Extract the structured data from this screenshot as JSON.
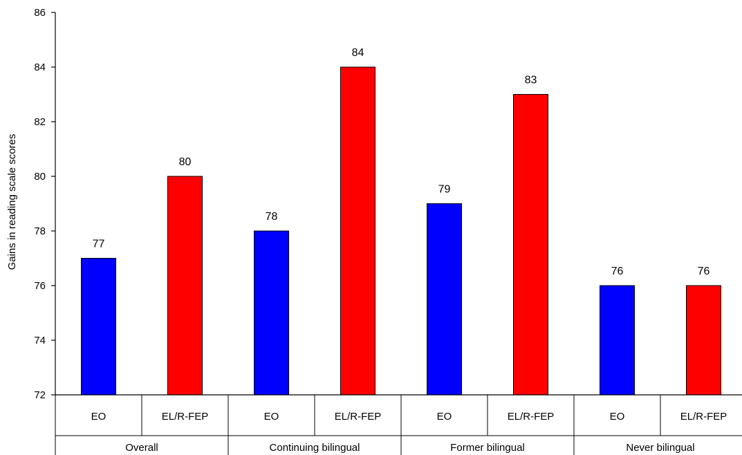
{
  "chart_data": {
    "type": "bar",
    "title": "",
    "ylabel": "Gains in reading scale scores",
    "ylim": [
      72,
      86
    ],
    "yticks": [
      72,
      74,
      76,
      78,
      80,
      82,
      84,
      86
    ],
    "grid": false,
    "groups": [
      {
        "label": "Overall",
        "bars": [
          {
            "category": "EO",
            "value": 77,
            "label": "77"
          },
          {
            "category": "EL/R-FEP",
            "value": 80,
            "label": "80"
          }
        ]
      },
      {
        "label": "Continuing bilingual",
        "bars": [
          {
            "category": "EO",
            "value": 78,
            "label": "78"
          },
          {
            "category": "EL/R-FEP",
            "value": 84,
            "label": "84"
          }
        ]
      },
      {
        "label": "Former bilingual",
        "bars": [
          {
            "category": "EO",
            "value": 79,
            "label": "79"
          },
          {
            "category": "EL/R-FEP",
            "value": 83,
            "label": "83"
          }
        ]
      },
      {
        "label": "Never bilingual",
        "bars": [
          {
            "category": "EO",
            "value": 76,
            "label": "76"
          },
          {
            "category": "EL/R-FEP",
            "value": 76,
            "label": "76"
          }
        ]
      }
    ],
    "colors": {
      "EO": "#0000ff",
      "EL/R-FEP": "#ff0000"
    }
  }
}
